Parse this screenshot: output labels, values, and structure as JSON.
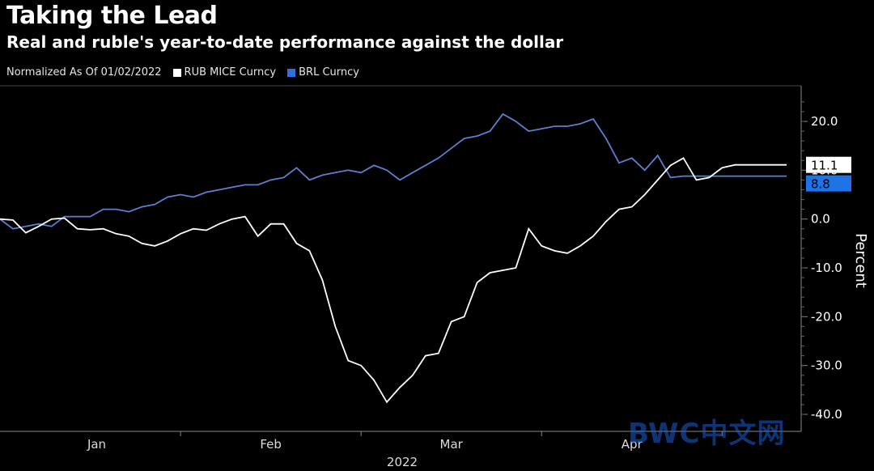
{
  "title": "Taking the Lead",
  "subtitle": "Real and ruble's year-to-date performance against the dollar",
  "legend": {
    "normalized_label": "Normalized As Of 01/02/2022",
    "rub_label": "RUB MICE Curncy",
    "brl_label": "BRL Curncy"
  },
  "colors": {
    "rub": "#ffffff",
    "brl": "#5b7fd1",
    "brl_tag": "#1e73e6",
    "axis": "#888888",
    "background": "#000000"
  },
  "watermark": "BWC中文网",
  "chart_data": {
    "type": "line",
    "title": "Taking the Lead",
    "ylabel": "Percent",
    "xlabel": "2022",
    "ylim": [
      -42,
      26
    ],
    "xlim": [
      0,
      122
    ],
    "y_ticks": [
      20,
      10,
      0,
      -10,
      -20,
      -30,
      -40
    ],
    "y_tick_labels": [
      "20.0",
      "10.0",
      "0.0",
      "-10.0",
      "-20.0",
      "-30.0",
      "-40.0"
    ],
    "x_ticks": [
      {
        "label": "Jan",
        "x": 15
      },
      {
        "label": "Feb",
        "x": 42
      },
      {
        "label": "Mar",
        "x": 70
      },
      {
        "label": "Apr",
        "x": 98
      }
    ],
    "year_label": "2022",
    "last_value_labels": {
      "rub": "11.1",
      "brl": "8.8"
    },
    "series": [
      {
        "name": "RUB MICE Curncy",
        "key": "rub",
        "x": [
          0,
          2,
          4,
          6,
          8,
          10,
          12,
          14,
          16,
          18,
          20,
          22,
          24,
          26,
          28,
          30,
          32,
          34,
          36,
          38,
          40,
          42,
          44,
          46,
          48,
          50,
          52,
          54,
          56,
          58,
          60,
          62,
          64,
          66,
          68,
          70,
          72,
          74,
          76,
          78,
          80,
          82,
          84,
          86,
          88,
          90,
          92,
          94,
          96,
          98,
          100,
          102,
          104,
          106,
          108,
          110,
          112,
          114,
          116,
          118,
          120,
          122
        ],
        "values": [
          0,
          -0.2,
          -2.8,
          -1.5,
          0,
          0.2,
          -2,
          -2.2,
          -2,
          -3,
          -3.5,
          -5,
          -5.5,
          -4.5,
          -3,
          -2,
          -2.3,
          -1,
          0,
          0.5,
          -3.5,
          -1,
          -1,
          -5,
          -6.5,
          -12.5,
          -22,
          -29,
          -30,
          -33,
          -37.5,
          -34.5,
          -32,
          -28,
          -27.5,
          -21,
          -20,
          -13,
          -11,
          -10.5,
          -10,
          -2,
          -5.5,
          -6.5,
          -7,
          -5.5,
          -3.5,
          -0.5,
          2,
          2.5,
          5,
          8,
          11,
          12.5,
          8,
          8.5,
          10.5,
          11.1,
          11.1,
          11.1,
          11.1,
          11.1
        ]
      },
      {
        "name": "BRL Curncy",
        "key": "brl",
        "x": [
          0,
          2,
          4,
          6,
          8,
          10,
          12,
          14,
          16,
          18,
          20,
          22,
          24,
          26,
          28,
          30,
          32,
          34,
          36,
          38,
          40,
          42,
          44,
          46,
          48,
          50,
          52,
          54,
          56,
          58,
          60,
          62,
          64,
          66,
          68,
          70,
          72,
          74,
          76,
          78,
          80,
          82,
          84,
          86,
          88,
          90,
          92,
          94,
          96,
          98,
          100,
          102,
          104,
          106,
          108,
          110,
          112,
          114,
          116,
          118,
          120,
          122
        ],
        "values": [
          0,
          -2,
          -1.5,
          -1,
          -1.5,
          0.5,
          0.5,
          0.5,
          2,
          2,
          1.5,
          2.5,
          3,
          4.5,
          5,
          4.5,
          5.5,
          6,
          6.5,
          7,
          7,
          8,
          8.5,
          10.5,
          8,
          9,
          9.5,
          10,
          9.5,
          11,
          10,
          8,
          9.5,
          11,
          12.5,
          14.5,
          16.5,
          17,
          18,
          21.5,
          20,
          18,
          18.5,
          19,
          19,
          19.5,
          20.5,
          16.5,
          11.5,
          12.5,
          10,
          13,
          8.5,
          8.8,
          8.8,
          8.8,
          8.8,
          8.8,
          8.8,
          8.8,
          8.8,
          8.8
        ]
      }
    ]
  }
}
